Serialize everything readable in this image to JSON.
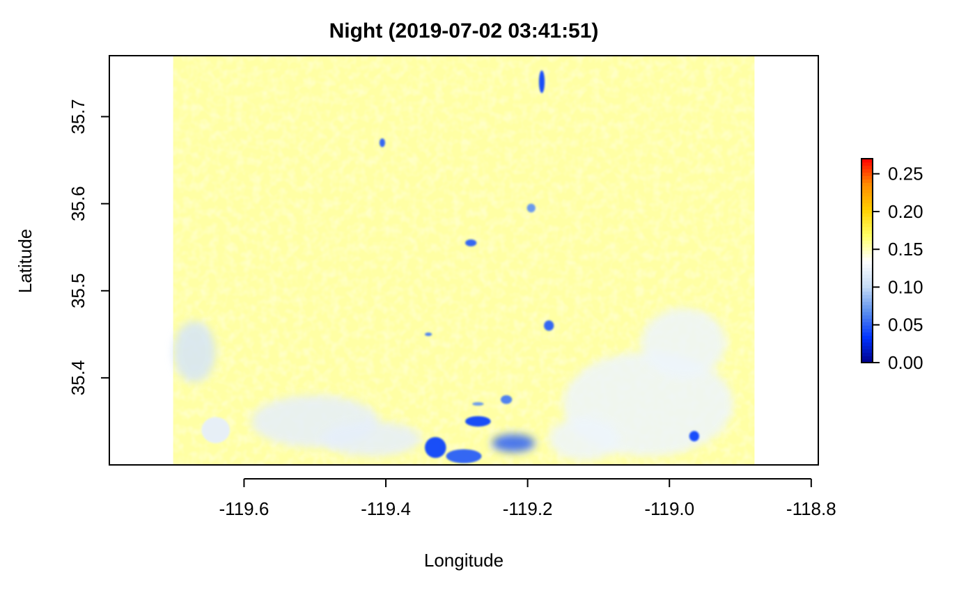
{
  "chart_data": {
    "type": "heatmap",
    "title": "Night (2019-07-02 03:41:51)",
    "xlabel": "Longitude",
    "ylabel": "Latitude",
    "xlim": [
      -119.79,
      -118.79
    ],
    "ylim": [
      35.3,
      35.77
    ],
    "raster_extent": {
      "lon": [
        -119.7,
        -118.88
      ],
      "lat": [
        35.3,
        35.77
      ]
    },
    "x_ticks": [
      {
        "value": -119.6,
        "label": "-119.6"
      },
      {
        "value": -119.4,
        "label": "-119.4"
      },
      {
        "value": -119.2,
        "label": "-119.2"
      },
      {
        "value": -119.0,
        "label": "-119.0"
      },
      {
        "value": -118.8,
        "label": "-118.8"
      }
    ],
    "y_ticks": [
      {
        "value": 35.4,
        "label": "35.4"
      },
      {
        "value": 35.5,
        "label": "35.5"
      },
      {
        "value": 35.6,
        "label": "35.6"
      },
      {
        "value": 35.7,
        "label": "35.7"
      }
    ],
    "colorbar": {
      "range": [
        0.0,
        0.27
      ],
      "ticks": [
        {
          "value": 0.0,
          "label": "0.00"
        },
        {
          "value": 0.05,
          "label": "0.05"
        },
        {
          "value": 0.1,
          "label": "0.10"
        },
        {
          "value": 0.15,
          "label": "0.15"
        },
        {
          "value": 0.2,
          "label": "0.20"
        },
        {
          "value": 0.25,
          "label": "0.25"
        }
      ],
      "colors": [
        "#00008b",
        "#0033ff",
        "#5b8fef",
        "#c6dcf6",
        "#ffffff",
        "#ffff66",
        "#ffd000",
        "#ff8c00",
        "#ff0000"
      ]
    },
    "background_value": 0.155,
    "features": [
      {
        "name": "west-edge-patch",
        "lon": -119.67,
        "lat": 35.43,
        "rx": 0.03,
        "ry": 0.035,
        "value": 0.11
      },
      {
        "name": "southwest-band-1",
        "lon": -119.5,
        "lat": 35.35,
        "rx": 0.09,
        "ry": 0.03,
        "value": 0.12
      },
      {
        "name": "southwest-band-2",
        "lon": -119.42,
        "lat": 35.33,
        "rx": 0.07,
        "ry": 0.02,
        "value": 0.12
      },
      {
        "name": "southwest-small",
        "lon": -119.64,
        "lat": 35.34,
        "rx": 0.02,
        "ry": 0.015,
        "value": 0.12
      },
      {
        "name": "southeast-urban",
        "lon": -119.03,
        "lat": 35.37,
        "rx": 0.12,
        "ry": 0.06,
        "value": 0.125
      },
      {
        "name": "east-urban-north",
        "lon": -118.98,
        "lat": 35.44,
        "rx": 0.06,
        "ry": 0.04,
        "value": 0.125
      },
      {
        "name": "south-center-urban",
        "lon": -119.12,
        "lat": 35.33,
        "rx": 0.05,
        "ry": 0.025,
        "value": 0.125
      },
      {
        "name": "field-north",
        "lon": -119.18,
        "lat": 35.74,
        "rx": 0.004,
        "ry": 0.013,
        "value": 0.04
      },
      {
        "name": "field-nw",
        "lon": -119.405,
        "lat": 35.67,
        "rx": 0.004,
        "ry": 0.005,
        "value": 0.05
      },
      {
        "name": "field-center",
        "lon": -119.28,
        "lat": 35.555,
        "rx": 0.008,
        "ry": 0.004,
        "value": 0.05
      },
      {
        "name": "field-center-2",
        "lon": -119.195,
        "lat": 35.595,
        "rx": 0.006,
        "ry": 0.005,
        "value": 0.07
      },
      {
        "name": "field-east-center",
        "lon": -119.17,
        "lat": 35.46,
        "rx": 0.007,
        "ry": 0.006,
        "value": 0.05
      },
      {
        "name": "field-south-1",
        "lon": -119.27,
        "lat": 35.35,
        "rx": 0.018,
        "ry": 0.006,
        "value": 0.04
      },
      {
        "name": "field-south-2",
        "lon": -119.33,
        "lat": 35.32,
        "rx": 0.015,
        "ry": 0.012,
        "value": 0.04
      },
      {
        "name": "field-south-3",
        "lon": -119.22,
        "lat": 35.325,
        "rx": 0.03,
        "ry": 0.01,
        "value": 0.05
      },
      {
        "name": "field-south-4",
        "lon": -119.29,
        "lat": 35.31,
        "rx": 0.025,
        "ry": 0.008,
        "value": 0.05
      },
      {
        "name": "field-south-5",
        "lon": -119.23,
        "lat": 35.375,
        "rx": 0.008,
        "ry": 0.005,
        "value": 0.06
      },
      {
        "name": "field-southeast",
        "lon": -118.965,
        "lat": 35.333,
        "rx": 0.007,
        "ry": 0.006,
        "value": 0.04
      },
      {
        "name": "field-small-1",
        "lon": -119.34,
        "lat": 35.45,
        "rx": 0.005,
        "ry": 0.002,
        "value": 0.06
      },
      {
        "name": "field-small-2",
        "lon": -119.27,
        "lat": 35.37,
        "rx": 0.008,
        "ry": 0.002,
        "value": 0.07
      }
    ]
  }
}
